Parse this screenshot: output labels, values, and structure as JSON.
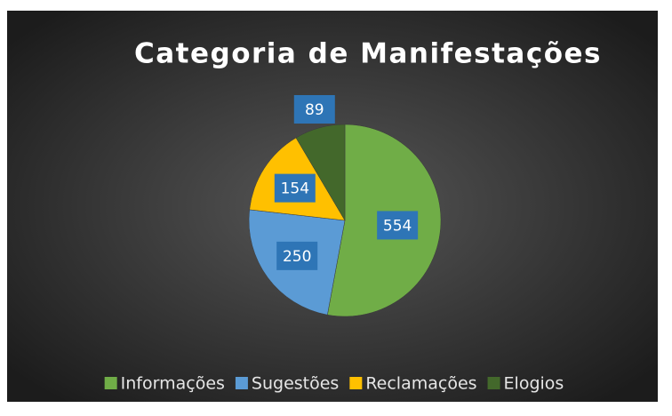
{
  "chart_data": {
    "type": "pie",
    "title": "Categoria de Manifestações",
    "categories": [
      "Informações",
      "Sugestões",
      "Reclamações",
      "Elogios"
    ],
    "values": [
      554,
      250,
      154,
      89
    ],
    "colors": [
      "#70ad47",
      "#5b9bd5",
      "#ffc000",
      "#43682b"
    ],
    "legend": "bottom"
  }
}
